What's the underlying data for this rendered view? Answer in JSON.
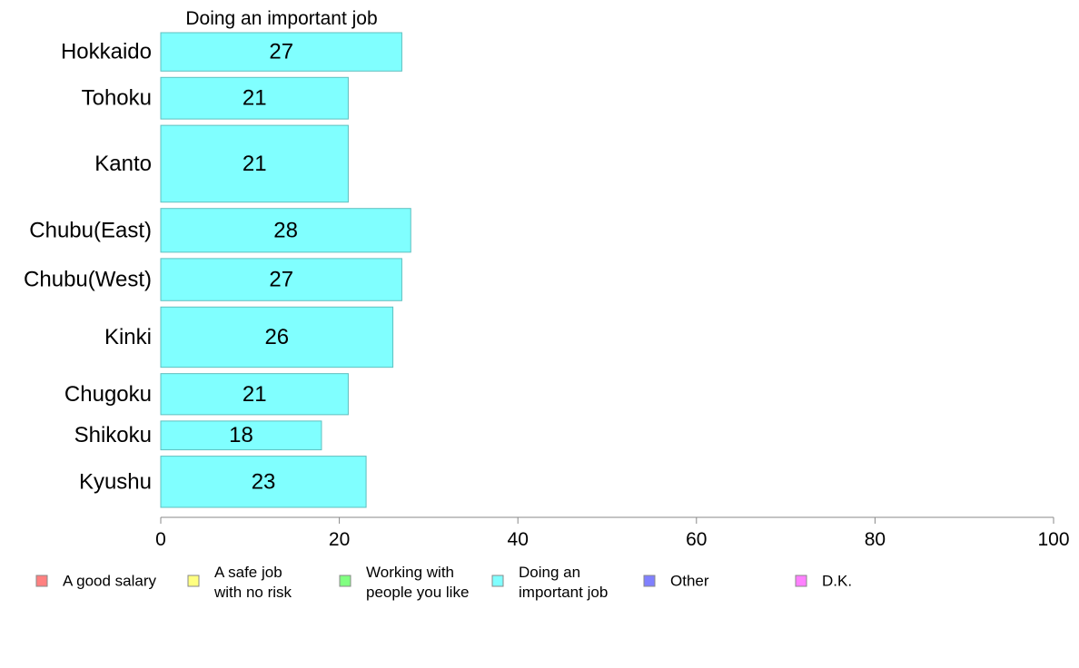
{
  "chart_data": {
    "type": "bar",
    "orientation": "horizontal",
    "title": "Doing an important job",
    "categories": [
      "Hokkaido",
      "Tohoku",
      "Kanto",
      "Chubu(East)",
      "Chubu(West)",
      "Kinki",
      "Chugoku",
      "Shikoku",
      "Kyushu"
    ],
    "category_weights": [
      0.72,
      0.78,
      1.44,
      0.82,
      0.79,
      1.13,
      0.77,
      0.54,
      0.96
    ],
    "values": [
      27,
      21,
      21,
      28,
      27,
      26,
      21,
      18,
      23
    ],
    "value_labels": [
      "27",
      "21",
      "21",
      "28",
      "27",
      "26",
      "21",
      "18",
      "23"
    ],
    "xlim": [
      0,
      100
    ],
    "xticks": [
      0,
      20,
      40,
      60,
      80,
      100
    ],
    "xtick_labels": [
      "0",
      "20",
      "40",
      "60",
      "80",
      "100"
    ],
    "bar_color": "#80ffff",
    "bar_edge_color": "#5fbfbf",
    "grid": false,
    "legend": {
      "placement": "bottom",
      "items": [
        {
          "lines": [
            "A good salary"
          ],
          "color": "#ff8080"
        },
        {
          "lines": [
            "A safe job",
            "with no risk"
          ],
          "color": "#ffff80"
        },
        {
          "lines": [
            "Working with",
            "people you like"
          ],
          "color": "#80ff80"
        },
        {
          "lines": [
            "Doing an",
            "important job"
          ],
          "color": "#80ffff"
        },
        {
          "lines": [
            "Other"
          ],
          "color": "#8080ff"
        },
        {
          "lines": [
            "D.K."
          ],
          "color": "#ff80ff"
        }
      ]
    }
  }
}
